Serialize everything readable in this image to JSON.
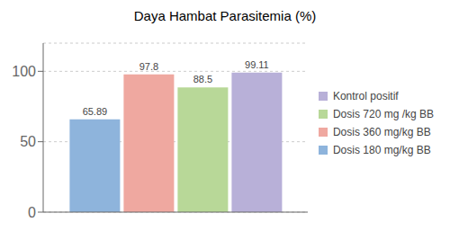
{
  "chart_data": {
    "type": "bar",
    "title": "Daya Hambat Parasitemia (%)",
    "categories": [
      null
    ],
    "series": [
      {
        "name": "Dosis 180 mg/kg BB",
        "color": "#8EB4DC",
        "values": [
          65.89
        ]
      },
      {
        "name": "Dosis 360 mg/kg BB",
        "color": "#EFA8A0",
        "values": [
          97.8
        ]
      },
      {
        "name": "Dosis 720 mg /kg BB",
        "color": "#B8D898",
        "values": [
          88.5
        ]
      },
      {
        "name": "Kontrol positif",
        "color": "#B8B0D8",
        "values": [
          99.11
        ]
      }
    ],
    "ylim": [
      0,
      120
    ],
    "yticks": [
      0,
      50,
      100
    ],
    "grid": true,
    "legend": "right",
    "data_labels": true,
    "tick_labels": "y"
  }
}
